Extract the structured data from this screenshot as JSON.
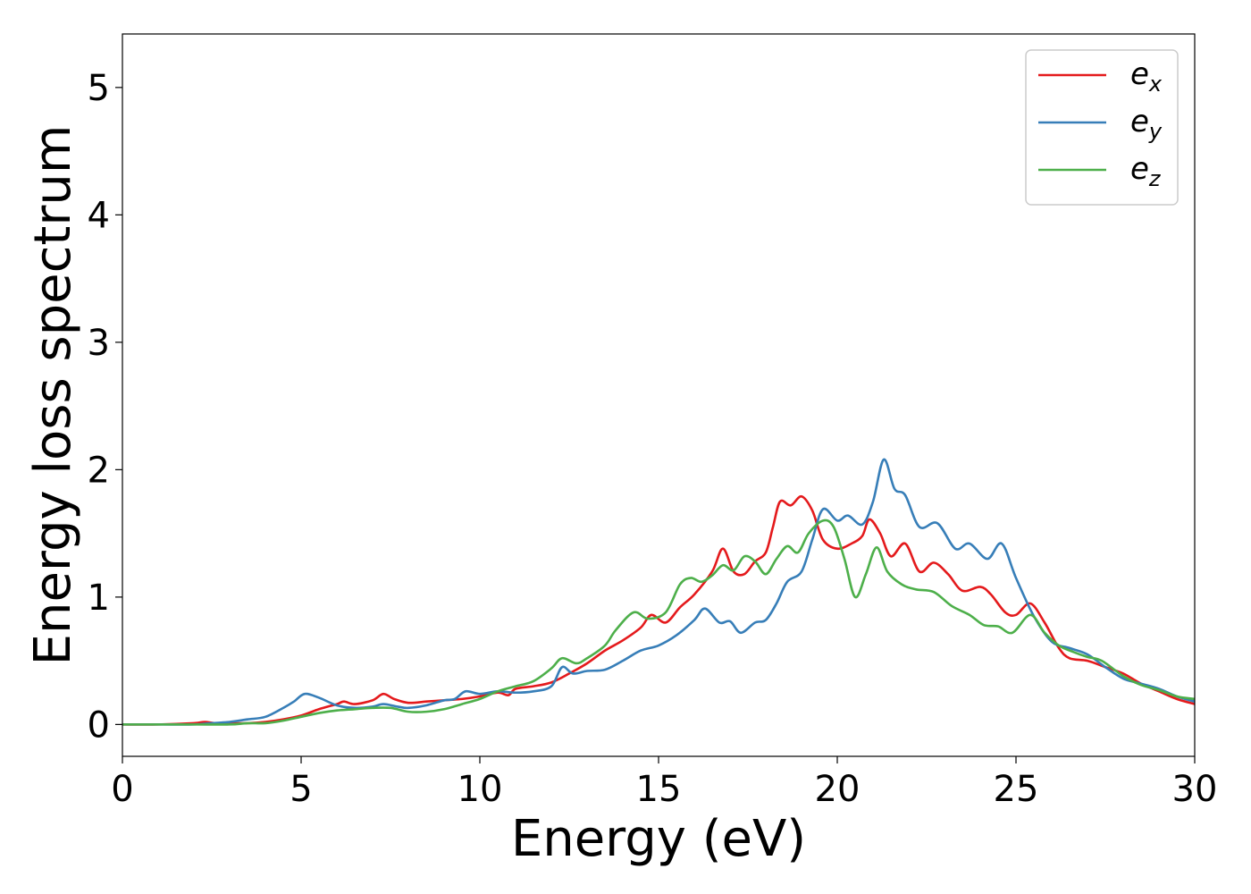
{
  "chart_data": {
    "type": "line",
    "xlabel": "Energy (eV)",
    "ylabel": "Energy loss spectrum",
    "xlim": [
      0,
      30
    ],
    "ylim": [
      -0.25,
      5.42
    ],
    "xticks": [
      0,
      5,
      10,
      15,
      20,
      25,
      30
    ],
    "xtick_labels": [
      "0",
      "5",
      "10",
      "15",
      "20",
      "25",
      "30"
    ],
    "yticks": [
      0,
      1,
      2,
      3,
      4,
      5
    ],
    "ytick_labels": [
      "0",
      "1",
      "2",
      "3",
      "4",
      "5"
    ],
    "grid": false,
    "legend_position": "top-right",
    "series": [
      {
        "name_main": "e",
        "name_sub": "x",
        "color": "#e41a1c",
        "points": [
          [
            0,
            0
          ],
          [
            1,
            0
          ],
          [
            2,
            0.01
          ],
          [
            2.3,
            0.02
          ],
          [
            2.6,
            0.01
          ],
          [
            3,
            0.01
          ],
          [
            3.5,
            0.01
          ],
          [
            4,
            0.02
          ],
          [
            4.5,
            0.04
          ],
          [
            5,
            0.07
          ],
          [
            5.5,
            0.12
          ],
          [
            6,
            0.16
          ],
          [
            6.2,
            0.18
          ],
          [
            6.5,
            0.16
          ],
          [
            7,
            0.19
          ],
          [
            7.3,
            0.24
          ],
          [
            7.6,
            0.2
          ],
          [
            8,
            0.17
          ],
          [
            8.5,
            0.18
          ],
          [
            9,
            0.19
          ],
          [
            9.5,
            0.2
          ],
          [
            10,
            0.22
          ],
          [
            10.5,
            0.25
          ],
          [
            10.8,
            0.23
          ],
          [
            11,
            0.28
          ],
          [
            11.5,
            0.3
          ],
          [
            12,
            0.33
          ],
          [
            12.5,
            0.4
          ],
          [
            13,
            0.48
          ],
          [
            13.5,
            0.58
          ],
          [
            14,
            0.66
          ],
          [
            14.5,
            0.76
          ],
          [
            14.8,
            0.86
          ],
          [
            15.2,
            0.8
          ],
          [
            15.6,
            0.92
          ],
          [
            16,
            1.02
          ],
          [
            16.5,
            1.2
          ],
          [
            16.8,
            1.38
          ],
          [
            17.1,
            1.2
          ],
          [
            17.4,
            1.18
          ],
          [
            17.7,
            1.28
          ],
          [
            18,
            1.35
          ],
          [
            18.2,
            1.55
          ],
          [
            18.4,
            1.75
          ],
          [
            18.7,
            1.72
          ],
          [
            19,
            1.79
          ],
          [
            19.3,
            1.68
          ],
          [
            19.6,
            1.45
          ],
          [
            20,
            1.38
          ],
          [
            20.4,
            1.42
          ],
          [
            20.7,
            1.48
          ],
          [
            20.9,
            1.61
          ],
          [
            21.2,
            1.5
          ],
          [
            21.5,
            1.32
          ],
          [
            21.9,
            1.42
          ],
          [
            22.3,
            1.2
          ],
          [
            22.7,
            1.27
          ],
          [
            23.1,
            1.18
          ],
          [
            23.5,
            1.05
          ],
          [
            24,
            1.08
          ],
          [
            24.3,
            1.02
          ],
          [
            24.7,
            0.88
          ],
          [
            25,
            0.86
          ],
          [
            25.4,
            0.95
          ],
          [
            25.8,
            0.8
          ],
          [
            26.2,
            0.6
          ],
          [
            26.5,
            0.52
          ],
          [
            27,
            0.5
          ],
          [
            27.5,
            0.45
          ],
          [
            28,
            0.4
          ],
          [
            28.5,
            0.32
          ],
          [
            29,
            0.26
          ],
          [
            29.5,
            0.2
          ],
          [
            30,
            0.16
          ]
        ]
      },
      {
        "name_main": "e",
        "name_sub": "y",
        "color": "#377eb8",
        "points": [
          [
            0,
            0
          ],
          [
            1,
            0
          ],
          [
            2,
            0
          ],
          [
            2.5,
            0.01
          ],
          [
            3,
            0.02
          ],
          [
            3.5,
            0.04
          ],
          [
            4,
            0.06
          ],
          [
            4.5,
            0.13
          ],
          [
            4.8,
            0.18
          ],
          [
            5.1,
            0.24
          ],
          [
            5.5,
            0.21
          ],
          [
            6,
            0.15
          ],
          [
            6.5,
            0.13
          ],
          [
            7,
            0.14
          ],
          [
            7.3,
            0.16
          ],
          [
            7.7,
            0.14
          ],
          [
            8,
            0.13
          ],
          [
            8.5,
            0.15
          ],
          [
            9,
            0.19
          ],
          [
            9.3,
            0.2
          ],
          [
            9.6,
            0.26
          ],
          [
            10,
            0.24
          ],
          [
            10.5,
            0.26
          ],
          [
            11,
            0.25
          ],
          [
            11.5,
            0.26
          ],
          [
            12,
            0.3
          ],
          [
            12.3,
            0.45
          ],
          [
            12.6,
            0.4
          ],
          [
            13,
            0.42
          ],
          [
            13.5,
            0.43
          ],
          [
            14,
            0.5
          ],
          [
            14.5,
            0.58
          ],
          [
            15,
            0.62
          ],
          [
            15.5,
            0.7
          ],
          [
            16,
            0.82
          ],
          [
            16.3,
            0.91
          ],
          [
            16.7,
            0.8
          ],
          [
            17,
            0.81
          ],
          [
            17.3,
            0.72
          ],
          [
            17.7,
            0.8
          ],
          [
            18,
            0.82
          ],
          [
            18.3,
            0.95
          ],
          [
            18.6,
            1.12
          ],
          [
            19,
            1.2
          ],
          [
            19.3,
            1.45
          ],
          [
            19.6,
            1.69
          ],
          [
            20,
            1.6
          ],
          [
            20.3,
            1.64
          ],
          [
            20.7,
            1.57
          ],
          [
            21,
            1.75
          ],
          [
            21.3,
            2.08
          ],
          [
            21.6,
            1.85
          ],
          [
            21.9,
            1.8
          ],
          [
            22.3,
            1.55
          ],
          [
            22.8,
            1.58
          ],
          [
            23.3,
            1.38
          ],
          [
            23.7,
            1.42
          ],
          [
            24.2,
            1.3
          ],
          [
            24.6,
            1.42
          ],
          [
            25,
            1.15
          ],
          [
            25.5,
            0.85
          ],
          [
            26,
            0.65
          ],
          [
            26.5,
            0.6
          ],
          [
            27,
            0.55
          ],
          [
            27.5,
            0.45
          ],
          [
            28,
            0.36
          ],
          [
            28.5,
            0.32
          ],
          [
            29,
            0.28
          ],
          [
            29.5,
            0.22
          ],
          [
            30,
            0.18
          ]
        ]
      },
      {
        "name_main": "e",
        "name_sub": "z",
        "color": "#4daf4a",
        "points": [
          [
            0,
            0
          ],
          [
            1,
            0
          ],
          [
            2,
            0
          ],
          [
            3,
            0
          ],
          [
            3.5,
            0.01
          ],
          [
            4,
            0.01
          ],
          [
            4.5,
            0.03
          ],
          [
            5,
            0.06
          ],
          [
            5.5,
            0.09
          ],
          [
            6,
            0.11
          ],
          [
            6.5,
            0.12
          ],
          [
            7,
            0.13
          ],
          [
            7.5,
            0.13
          ],
          [
            8,
            0.1
          ],
          [
            8.5,
            0.1
          ],
          [
            9,
            0.12
          ],
          [
            9.5,
            0.16
          ],
          [
            10,
            0.2
          ],
          [
            10.5,
            0.26
          ],
          [
            11,
            0.3
          ],
          [
            11.5,
            0.34
          ],
          [
            12,
            0.44
          ],
          [
            12.3,
            0.52
          ],
          [
            12.7,
            0.48
          ],
          [
            13,
            0.52
          ],
          [
            13.5,
            0.62
          ],
          [
            13.8,
            0.74
          ],
          [
            14.3,
            0.88
          ],
          [
            14.7,
            0.83
          ],
          [
            15.2,
            0.88
          ],
          [
            15.6,
            1.1
          ],
          [
            15.9,
            1.15
          ],
          [
            16.2,
            1.12
          ],
          [
            16.5,
            1.17
          ],
          [
            16.8,
            1.25
          ],
          [
            17.1,
            1.21
          ],
          [
            17.4,
            1.32
          ],
          [
            17.7,
            1.28
          ],
          [
            18,
            1.18
          ],
          [
            18.3,
            1.3
          ],
          [
            18.6,
            1.4
          ],
          [
            18.9,
            1.35
          ],
          [
            19.2,
            1.5
          ],
          [
            19.6,
            1.6
          ],
          [
            19.9,
            1.55
          ],
          [
            20.2,
            1.3
          ],
          [
            20.5,
            1.0
          ],
          [
            20.8,
            1.18
          ],
          [
            21.1,
            1.39
          ],
          [
            21.4,
            1.2
          ],
          [
            21.8,
            1.1
          ],
          [
            22.2,
            1.06
          ],
          [
            22.7,
            1.04
          ],
          [
            23.2,
            0.93
          ],
          [
            23.7,
            0.86
          ],
          [
            24.1,
            0.78
          ],
          [
            24.5,
            0.77
          ],
          [
            24.9,
            0.72
          ],
          [
            25.4,
            0.86
          ],
          [
            25.8,
            0.72
          ],
          [
            26.2,
            0.62
          ],
          [
            26.6,
            0.57
          ],
          [
            27,
            0.53
          ],
          [
            27.4,
            0.5
          ],
          [
            28,
            0.38
          ],
          [
            28.5,
            0.31
          ],
          [
            29,
            0.27
          ],
          [
            29.5,
            0.22
          ],
          [
            30,
            0.2
          ]
        ]
      }
    ]
  }
}
